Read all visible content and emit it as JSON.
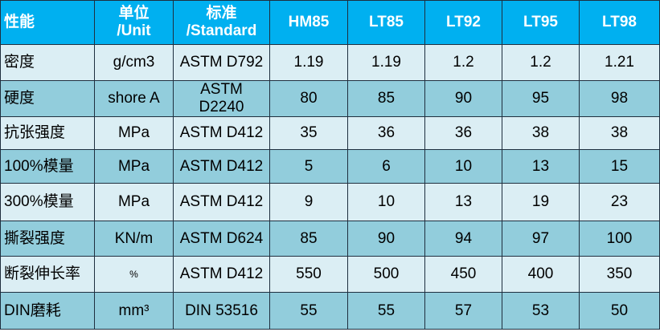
{
  "table": {
    "header": [
      "性能",
      "单位\n/Unit",
      "标准\n/Standard",
      "HM85",
      "LT85",
      "LT92",
      "LT95",
      "LT98"
    ],
    "rows": [
      [
        "密度",
        "g/cm3",
        "ASTM D792",
        "1.19",
        "1.19",
        "1.2",
        "1.2",
        "1.21"
      ],
      [
        "硬度",
        "shore A",
        "ASTM D2240",
        "80",
        "85",
        "90",
        "95",
        "98"
      ],
      [
        "抗张强度",
        "MPa",
        "ASTM D412",
        "35",
        "36",
        "36",
        "38",
        "38"
      ],
      [
        "100%模量",
        "MPa",
        "ASTM D412",
        "5",
        "6",
        "10",
        "13",
        "15"
      ],
      [
        "300%模量",
        "MPa",
        "ASTM D412",
        "9",
        "10",
        "13",
        "19",
        "23"
      ],
      [
        "撕裂强度",
        "KN/m",
        "ASTM D624",
        "85",
        "90",
        "94",
        "97",
        "100"
      ],
      [
        "断裂伸长率",
        "%",
        "ASTM D412",
        "550",
        "500",
        "450",
        "400",
        "350"
      ],
      [
        "DIN磨耗",
        "mm³",
        "DIN 53516",
        "55",
        "55",
        "57",
        "53",
        "50"
      ]
    ]
  }
}
